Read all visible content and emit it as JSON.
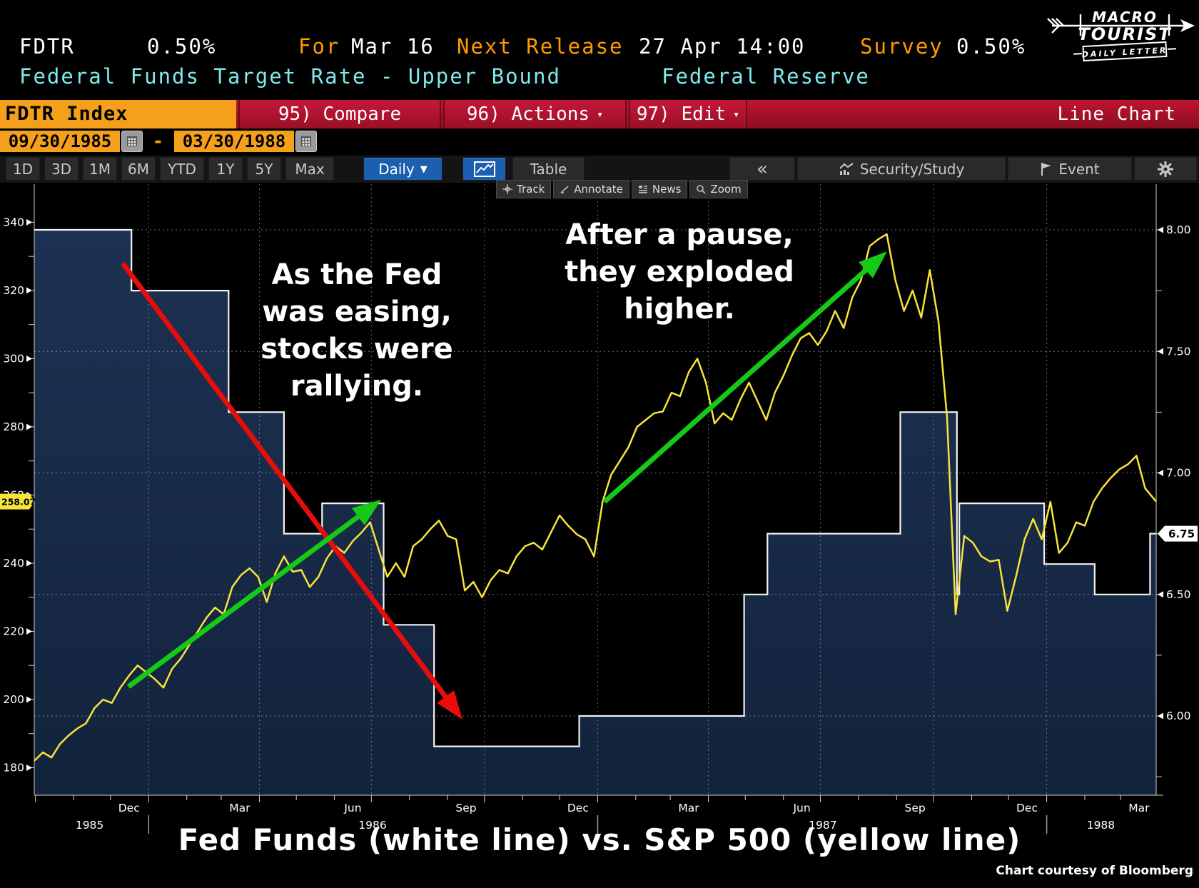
{
  "quote_bar": {
    "ticker": "FDTR",
    "last": "0.50%",
    "for_label": "For",
    "for_value": "Mar 16",
    "next_label": "Next Release",
    "next_value": "27 Apr 14:00",
    "survey_label": "Survey",
    "survey_value": "0.50%",
    "description": "Federal Funds Target Rate - Upper Bound",
    "source": "Federal Reserve"
  },
  "logo": {
    "line1": "MACRO",
    "line2": "TOURIST",
    "banner": "DAILY LETTER"
  },
  "command_bar": {
    "security": "FDTR Index",
    "buttons": [
      {
        "label": "95) Compare",
        "caret": false,
        "name": "compare"
      },
      {
        "label": "96) Actions",
        "caret": true,
        "name": "actions"
      },
      {
        "label": "97) Edit",
        "caret": true,
        "name": "edit"
      }
    ],
    "chart_type": "Line Chart"
  },
  "date_range": {
    "start": "09/30/1985",
    "separator": "-",
    "end": "03/30/1988"
  },
  "toolbar": {
    "ranges": [
      "1D",
      "3D",
      "1M",
      "6M",
      "YTD",
      "1Y",
      "5Y",
      "Max"
    ],
    "period": "Daily",
    "table_label": "Table",
    "collapse_label": "«",
    "security_study_label": "Security/Study",
    "event_label": "Event"
  },
  "chart_tools": [
    "Track",
    "Annotate",
    "News",
    "Zoom"
  ],
  "chart_data": {
    "type": "line",
    "title": "Fed Funds (white line) vs. S&P 500 (yellow line)",
    "x_start": "1985-09-30",
    "x_end": "1988-03-30",
    "grid": true,
    "left_axis": {
      "ticks": [
        340,
        320,
        300,
        280,
        260,
        240,
        220,
        200,
        180
      ],
      "range": [
        172,
        351
      ],
      "badge_label": "258.07",
      "badge_value": 258.07,
      "badge_color": "#f3e33b"
    },
    "right_axis": {
      "gridline_values": [
        8.0,
        7.5,
        7.0,
        6.5,
        6.0
      ],
      "minor_ticks": [
        7.75,
        7.25,
        6.75,
        6.25,
        5.75
      ],
      "range": [
        5.67,
        8.16
      ],
      "badge_label": "6.75",
      "badge_value": 6.75,
      "badge_color": "#ffffff"
    },
    "x_labels": [
      {
        "label": "Dec",
        "date": "1985-12-16"
      },
      {
        "label": "Mar",
        "date": "1986-03-16"
      },
      {
        "label": "Jun",
        "date": "1986-06-16"
      },
      {
        "label": "Sep",
        "date": "1986-09-16"
      },
      {
        "label": "Dec",
        "date": "1986-12-16"
      },
      {
        "label": "Mar",
        "date": "1987-03-16"
      },
      {
        "label": "Jun",
        "date": "1987-06-16"
      },
      {
        "label": "Sep",
        "date": "1987-09-16"
      },
      {
        "label": "Dec",
        "date": "1987-12-16"
      },
      {
        "label": "Mar",
        "date": "1988-03-16"
      }
    ],
    "year_labels": [
      {
        "label": "1985",
        "date": "1985-11-14"
      },
      {
        "label": "1986",
        "date": "1986-07-02"
      },
      {
        "label": "1987",
        "date": "1987-07-03"
      },
      {
        "label": "1988",
        "date": "1988-02-14"
      }
    ],
    "year_dividers": [
      "1986-01-01",
      "1987-01-01",
      "1988-01-01"
    ],
    "series": [
      {
        "name": "Fed Funds Target Rate (Upper Bound)",
        "axis": "right",
        "style": "step",
        "color": "#f2f2f2",
        "fill": "#152a46",
        "points": [
          [
            "1985-09-30",
            8.0
          ],
          [
            "1985-12-18",
            7.75
          ],
          [
            "1986-03-07",
            7.25
          ],
          [
            "1986-04-21",
            6.75
          ],
          [
            "1986-05-22",
            6.875
          ],
          [
            "1986-07-11",
            6.375
          ],
          [
            "1986-08-21",
            5.875
          ],
          [
            "1986-12-17",
            6.0
          ],
          [
            "1987-04-30",
            6.5
          ],
          [
            "1987-05-19",
            6.75
          ],
          [
            "1987-09-04",
            7.25
          ],
          [
            "1987-10-20",
            6.5
          ],
          [
            "1987-10-22",
            6.875
          ],
          [
            "1987-12-30",
            6.625
          ],
          [
            "1988-02-09",
            6.5
          ],
          [
            "1988-03-25",
            6.75
          ],
          [
            "1988-03-30",
            6.75
          ]
        ]
      },
      {
        "name": "S&P 500",
        "axis": "left",
        "style": "line",
        "color": "#f8e43a",
        "start": "1985-09-30",
        "interval_days": 7,
        "values": [
          182,
          184.5,
          183,
          187,
          189.5,
          191.5,
          193,
          197.5,
          200,
          199,
          203.5,
          207,
          210,
          208,
          206,
          203.5,
          209,
          212,
          216,
          220,
          224,
          227,
          225,
          233,
          236.5,
          238.5,
          236,
          228.6,
          237,
          242,
          237.5,
          238,
          233,
          236,
          241.5,
          245,
          243,
          246.5,
          249,
          252,
          244,
          236,
          240,
          236,
          245,
          247,
          250,
          252.5,
          248,
          247,
          232,
          234.5,
          230,
          235,
          238,
          237,
          242,
          245,
          246,
          244,
          249,
          254,
          251,
          248.5,
          247,
          242,
          258,
          266,
          270,
          274,
          280,
          282,
          284,
          284.5,
          290,
          289,
          296,
          300,
          293,
          281,
          284,
          282,
          288,
          293,
          287.5,
          282,
          290,
          295,
          301,
          306,
          307.5,
          304,
          308,
          314,
          309,
          318,
          323,
          333,
          335,
          336.5,
          323,
          314,
          320,
          312,
          326,
          311,
          282.7,
          225,
          248,
          246,
          242,
          240.5,
          241,
          226,
          236,
          247,
          253,
          247,
          258,
          243,
          246,
          252,
          251,
          258,
          262,
          265,
          267.5,
          269,
          271.5,
          262,
          258.07
        ]
      }
    ],
    "annotations": {
      "texts": [
        {
          "lines": [
            "As the Fed",
            "was easing,",
            "stocks were",
            "rallying."
          ],
          "x": 500,
          "y": 398,
          "line_height": 52
        },
        {
          "lines": [
            "After a pause,",
            "they exploded",
            "higher."
          ],
          "x": 952,
          "y": 342,
          "line_height": 52
        }
      ],
      "arrows": [
        {
          "color": "#e80c0c",
          "from": [
            172,
            369
          ],
          "to": [
            648,
            1008
          ]
        },
        {
          "color": "#16c916",
          "from": [
            180,
            962
          ],
          "to": [
            534,
            700
          ]
        },
        {
          "color": "#16c916",
          "from": [
            847,
            703
          ],
          "to": [
            1243,
            352
          ]
        }
      ]
    }
  },
  "footer": {
    "credit": "Chart courtesy of Bloomberg"
  }
}
